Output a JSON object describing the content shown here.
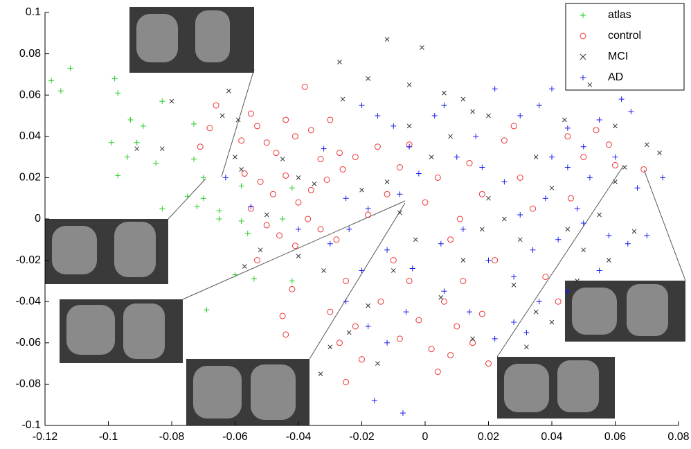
{
  "chart_data": {
    "type": "scatter",
    "xlim": [
      -0.12,
      0.08
    ],
    "ylim": [
      -0.1,
      0.1
    ],
    "xticks": [
      -0.12,
      -0.1,
      -0.08,
      -0.06,
      -0.04,
      -0.02,
      0,
      0.02,
      0.04,
      0.06,
      0.08
    ],
    "yticks": [
      -0.1,
      -0.08,
      -0.06,
      -0.04,
      -0.02,
      0,
      0.02,
      0.04,
      0.06,
      0.08,
      0.1
    ],
    "legend": "upper right",
    "series": [
      {
        "name": "atlas",
        "color": "#22cc22",
        "marker": "+",
        "x": [
          -0.118,
          -0.115,
          -0.112,
          -0.098,
          -0.097,
          -0.093,
          -0.089,
          -0.091,
          -0.099,
          -0.094,
          -0.097,
          -0.083,
          -0.085,
          -0.083,
          -0.073,
          -0.073,
          -0.07,
          -0.075,
          -0.07,
          -0.072,
          -0.065,
          -0.065,
          -0.058,
          -0.058,
          -0.056,
          -0.06,
          -0.054,
          -0.042,
          -0.045,
          -0.042,
          -0.069
        ],
        "y": [
          0.067,
          0.062,
          0.073,
          0.068,
          0.061,
          0.048,
          0.045,
          0.037,
          0.037,
          0.03,
          0.021,
          0.057,
          0.027,
          0.005,
          0.046,
          0.029,
          0.02,
          0.011,
          0.01,
          0.006,
          0.004,
          0.0,
          0.016,
          -0.001,
          -0.007,
          -0.027,
          -0.029,
          0.015,
          0.0,
          -0.03,
          -0.044
        ]
      },
      {
        "name": "control",
        "color": "#ee3333",
        "marker": "o",
        "x": [
          -0.068,
          -0.066,
          -0.071,
          -0.058,
          -0.055,
          -0.053,
          -0.05,
          -0.047,
          -0.044,
          -0.041,
          -0.038,
          -0.036,
          -0.033,
          -0.03,
          -0.027,
          -0.057,
          -0.052,
          -0.048,
          -0.044,
          -0.04,
          -0.036,
          -0.031,
          -0.026,
          -0.022,
          -0.055,
          -0.05,
          -0.046,
          -0.041,
          -0.037,
          -0.033,
          -0.053,
          -0.042,
          -0.045,
          -0.044,
          -0.028,
          -0.025,
          -0.03,
          -0.022,
          -0.027,
          -0.02,
          -0.025,
          -0.014,
          -0.01,
          -0.008,
          -0.005,
          -0.002,
          0.002,
          0.004,
          0.006,
          0.01,
          0.012,
          0.015,
          0.018,
          -0.018,
          -0.012,
          -0.008,
          -0.005,
          0.0,
          0.004,
          0.008,
          0.011,
          0.014,
          0.018,
          0.022,
          0.025,
          0.03,
          0.034,
          0.038,
          0.042,
          0.046,
          0.05,
          0.054,
          0.058,
          0.06,
          0.069,
          0.02,
          0.008,
          -0.015,
          0.028,
          0.045
        ],
        "y": [
          0.044,
          0.055,
          0.035,
          0.038,
          0.051,
          0.045,
          0.037,
          0.032,
          0.048,
          0.04,
          0.064,
          0.043,
          0.029,
          0.048,
          0.032,
          0.022,
          0.018,
          0.012,
          0.021,
          0.008,
          0.014,
          0.019,
          0.024,
          0.03,
          0.005,
          -0.003,
          -0.008,
          -0.013,
          0.0,
          -0.005,
          -0.02,
          -0.034,
          -0.047,
          -0.056,
          -0.01,
          -0.03,
          -0.045,
          -0.052,
          -0.06,
          -0.068,
          -0.079,
          -0.04,
          -0.02,
          -0.058,
          -0.03,
          -0.049,
          -0.063,
          -0.074,
          -0.04,
          -0.052,
          -0.03,
          -0.06,
          -0.046,
          0.002,
          0.012,
          0.025,
          0.036,
          0.008,
          0.02,
          -0.01,
          0.0,
          0.027,
          0.012,
          -0.02,
          0.038,
          0.02,
          0.005,
          -0.028,
          -0.04,
          0.01,
          0.03,
          0.043,
          0.036,
          0.026,
          0.024,
          -0.07,
          -0.066,
          0.035,
          0.045,
          0.04
        ]
      },
      {
        "name": "MCI",
        "color": "#333333",
        "marker": "x",
        "x": [
          -0.091,
          -0.083,
          -0.08,
          -0.064,
          -0.059,
          -0.06,
          -0.058,
          -0.045,
          -0.04,
          -0.035,
          -0.026,
          -0.027,
          -0.018,
          -0.012,
          -0.001,
          -0.005,
          0.006,
          0.012,
          -0.062,
          -0.05,
          -0.052,
          -0.057,
          -0.04,
          -0.032,
          -0.02,
          -0.012,
          -0.005,
          0.002,
          0.008,
          0.015,
          0.02,
          0.025,
          0.03,
          0.035,
          0.04,
          0.045,
          0.05,
          0.055,
          0.06,
          0.063,
          0.07,
          0.074,
          0.066,
          0.058,
          0.048,
          0.04,
          0.032,
          0.024,
          0.015,
          0.005,
          -0.003,
          -0.01,
          -0.018,
          -0.024,
          -0.03,
          -0.033,
          -0.015,
          0.012,
          0.028,
          0.035,
          0.044,
          0.052,
          0.06,
          0.02,
          -0.008,
          0.018
        ],
        "y": [
          0.034,
          0.034,
          0.057,
          0.05,
          0.048,
          0.03,
          0.024,
          0.029,
          0.02,
          0.017,
          0.058,
          0.076,
          0.068,
          0.087,
          0.083,
          0.065,
          0.061,
          0.058,
          0.062,
          0.002,
          -0.015,
          -0.023,
          -0.018,
          -0.025,
          0.014,
          0.018,
          0.045,
          0.03,
          0.04,
          0.052,
          0.01,
          0.0,
          -0.01,
          0.03,
          0.015,
          -0.005,
          -0.015,
          0.002,
          0.018,
          0.025,
          0.036,
          0.032,
          -0.006,
          -0.02,
          -0.03,
          -0.05,
          -0.062,
          -0.076,
          -0.058,
          -0.038,
          -0.01,
          -0.025,
          -0.042,
          -0.055,
          -0.062,
          -0.075,
          -0.07,
          -0.02,
          -0.032,
          -0.045,
          0.048,
          0.065,
          0.045,
          0.05,
          0.003,
          -0.005
        ]
      },
      {
        "name": "AD",
        "color": "#1a1aee",
        "marker": "+",
        "x": [
          -0.063,
          -0.055,
          -0.04,
          -0.032,
          -0.025,
          -0.02,
          -0.015,
          -0.01,
          -0.005,
          0.003,
          0.006,
          0.022,
          0.03,
          0.036,
          0.04,
          0.045,
          0.05,
          0.055,
          0.062,
          0.065,
          0.06,
          0.052,
          0.045,
          0.038,
          0.03,
          0.025,
          0.018,
          0.01,
          -0.002,
          -0.008,
          -0.018,
          -0.024,
          -0.03,
          -0.02,
          -0.012,
          -0.004,
          0.005,
          0.012,
          0.02,
          0.028,
          0.034,
          0.042,
          0.05,
          0.058,
          0.064,
          0.07,
          0.075,
          0.067,
          0.055,
          0.045,
          0.036,
          0.028,
          0.022,
          0.014,
          0.006,
          -0.006,
          -0.012,
          -0.018,
          -0.025,
          -0.016,
          -0.007,
          0.032,
          0.04,
          0.048,
          0.016
        ],
        "y": [
          0.02,
          0.006,
          -0.005,
          0.034,
          0.01,
          0.055,
          0.05,
          0.045,
          0.035,
          0.05,
          0.055,
          0.063,
          0.05,
          0.055,
          0.063,
          0.044,
          0.035,
          0.048,
          0.058,
          0.052,
          0.03,
          0.02,
          0.025,
          0.01,
          0.002,
          0.018,
          0.025,
          0.03,
          0.022,
          0.012,
          0.005,
          -0.005,
          -0.012,
          -0.025,
          -0.015,
          -0.024,
          -0.012,
          -0.005,
          -0.02,
          -0.028,
          -0.015,
          -0.01,
          -0.002,
          -0.008,
          -0.012,
          -0.008,
          0.02,
          0.015,
          -0.025,
          -0.035,
          -0.04,
          -0.05,
          -0.058,
          -0.045,
          -0.035,
          -0.045,
          -0.06,
          -0.052,
          -0.04,
          -0.088,
          -0.094,
          -0.055,
          0.03,
          0.005,
          0.04
        ]
      }
    ]
  }
}
